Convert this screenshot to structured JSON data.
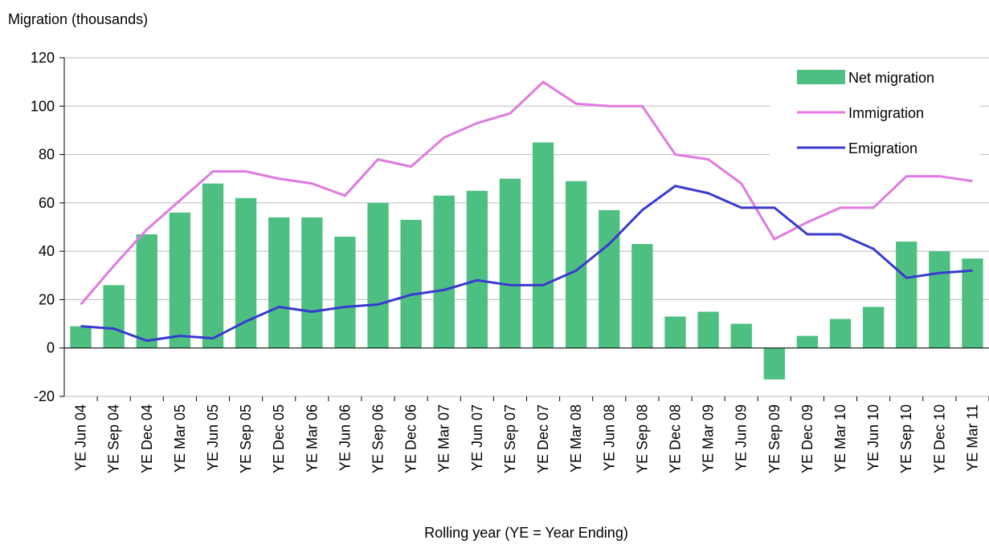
{
  "chart_data": {
    "type": "bar_line",
    "y_label": "Migration (thousands)",
    "x_label": "Rolling year (YE = Year Ending)",
    "categories": [
      "YE Jun 04",
      "YE Sep 04",
      "YE Dec 04",
      "YE Mar 05",
      "YE Jun 05",
      "YE Sep 05",
      "YE Dec 05",
      "YE Mar 06",
      "YE Jun 06",
      "YE Sep 06",
      "YE Dec 06",
      "YE Mar 07",
      "YE Jun 07",
      "YE Sep 07",
      "YE Dec 07",
      "YE Mar 08",
      "YE Jun 08",
      "YE Sep 08",
      "YE Dec 08",
      "YE Mar 09",
      "YE Jun 09",
      "YE Sep 09",
      "YE Dec 09",
      "YE Mar 10",
      "YE Jun 10",
      "YE Sep 10",
      "YE Dec 10",
      "YE Mar 11"
    ],
    "series": [
      {
        "name": "Net migration",
        "kind": "bar",
        "color": "#4dbf80",
        "values": [
          9,
          26,
          47,
          56,
          68,
          62,
          54,
          54,
          46,
          60,
          53,
          63,
          65,
          70,
          85,
          69,
          57,
          43,
          13,
          15,
          10,
          -13,
          5,
          12,
          17,
          44,
          40,
          37
        ]
      },
      {
        "name": "Immigration",
        "kind": "line",
        "color": "#e07ae0",
        "values": [
          18,
          34,
          49,
          61,
          73,
          73,
          70,
          68,
          63,
          78,
          75,
          87,
          93,
          97,
          110,
          101,
          100,
          100,
          80,
          78,
          68,
          45,
          52,
          58,
          58,
          71,
          71,
          69
        ]
      },
      {
        "name": "Emigration",
        "kind": "line",
        "color": "#3a3ad0",
        "values": [
          9,
          8,
          3,
          5,
          4,
          11,
          17,
          15,
          17,
          18,
          22,
          24,
          28,
          26,
          26,
          32,
          43,
          57,
          67,
          64,
          58,
          58,
          47,
          47,
          41,
          29,
          31,
          32
        ]
      }
    ],
    "ylim": [
      -20,
      120
    ],
    "yticks": [
      -20,
      0,
      20,
      40,
      60,
      80,
      100,
      120
    ],
    "grid": true,
    "legend": "upper right"
  }
}
